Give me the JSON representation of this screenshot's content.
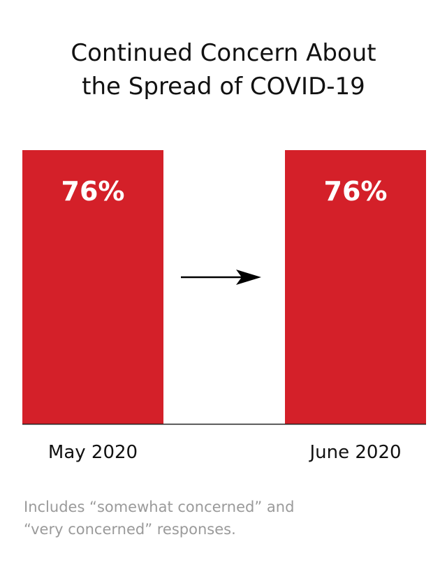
{
  "title_lines": [
    "Continued Concern About",
    "the Spread of COVID-19"
  ],
  "footnote_lines": [
    "Includes “somewhat concerned” and",
    "“very concerned” responses."
  ],
  "colors": {
    "bar": "#d42029",
    "data_label": "#ffffff",
    "text": "#111111",
    "footnote": "#9a9a9a",
    "arrow": "#000000",
    "baseline": "#222222"
  },
  "chart_data": {
    "type": "bar",
    "title": "Continued Concern About the Spread of COVID-19",
    "categories": [
      "May 2020",
      "June 2020"
    ],
    "values": [
      76,
      76
    ],
    "data_labels": [
      "76%",
      "76%"
    ],
    "xlabel": "",
    "ylabel": "",
    "ylim": [
      0,
      76
    ],
    "grid": false,
    "annotation": "right-arrow-between-bars"
  }
}
